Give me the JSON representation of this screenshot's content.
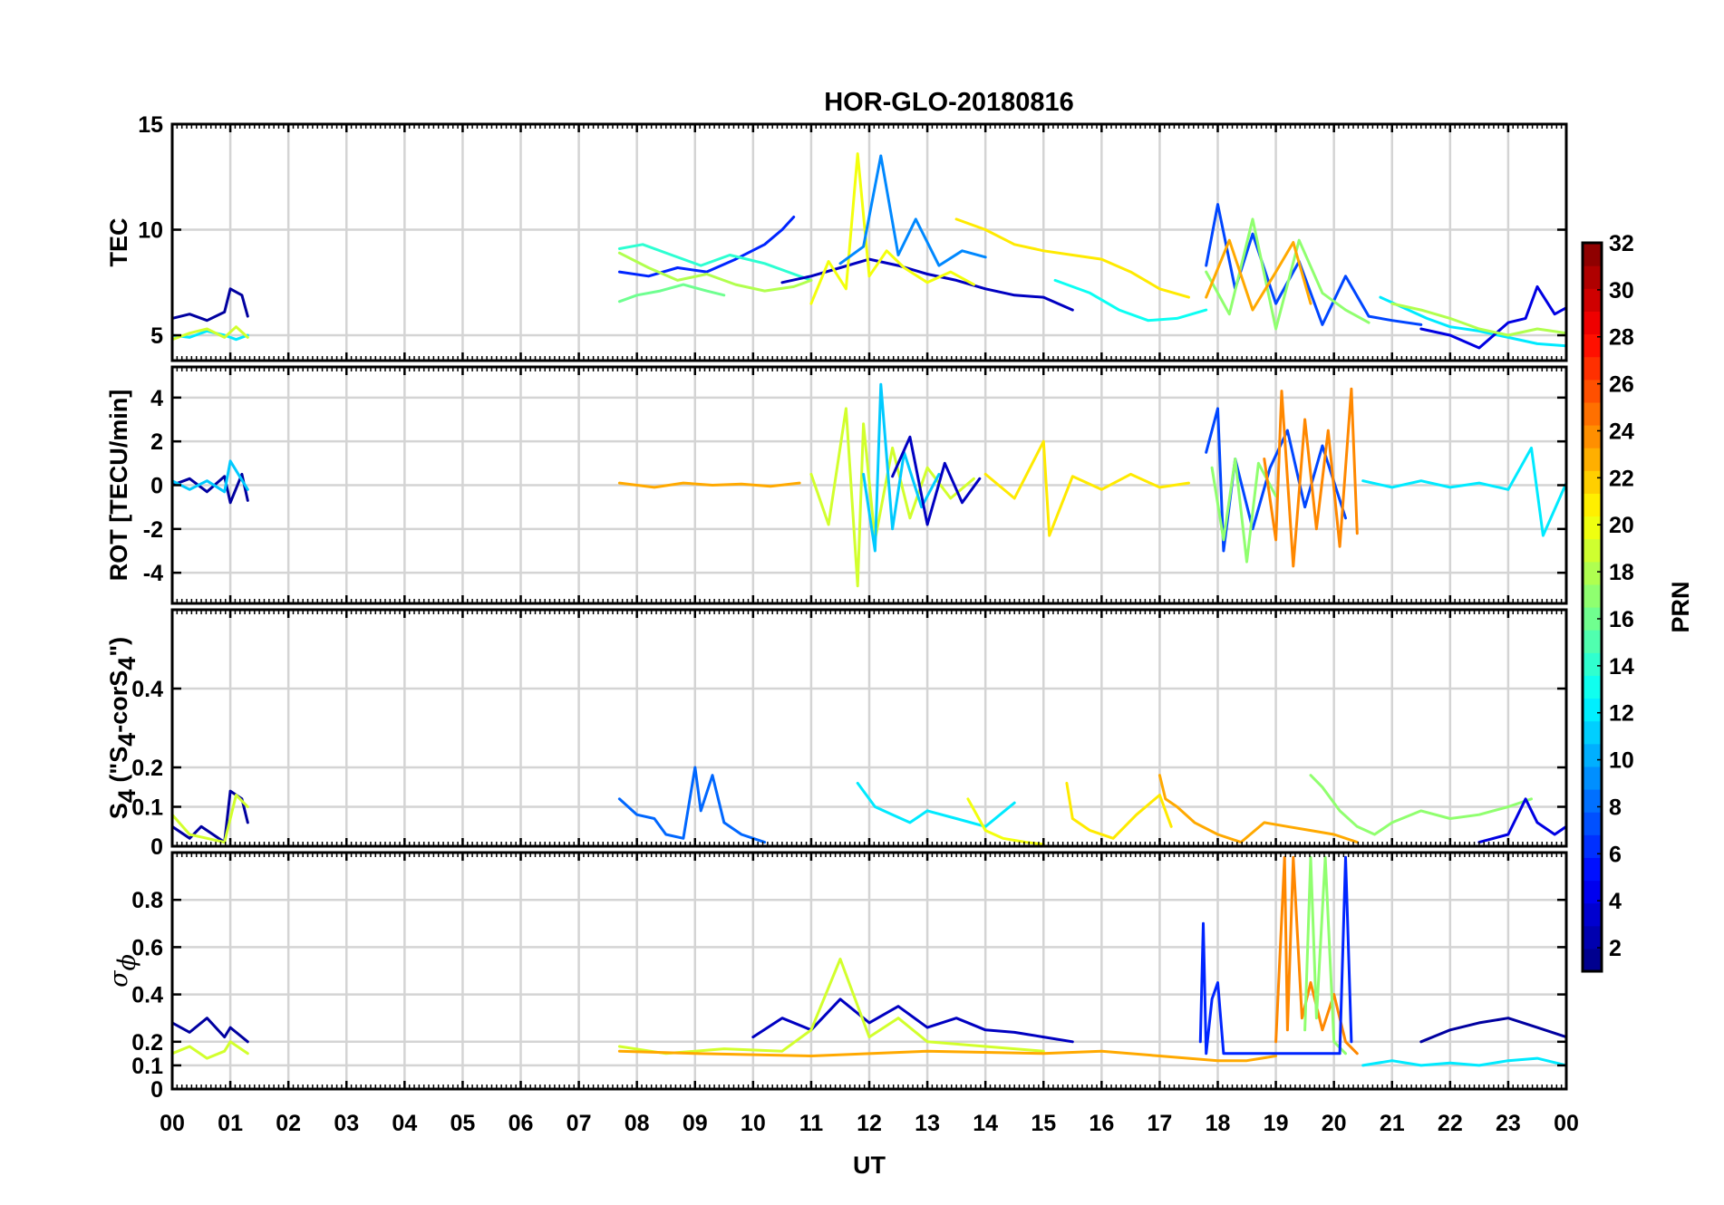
{
  "title": "HOR-GLO-20180816",
  "x_axis": {
    "label": "UT",
    "ticks": [
      "00",
      "01",
      "02",
      "03",
      "04",
      "05",
      "06",
      "07",
      "08",
      "09",
      "10",
      "11",
      "12",
      "13",
      "14",
      "15",
      "16",
      "17",
      "18",
      "19",
      "20",
      "21",
      "22",
      "23",
      "00"
    ]
  },
  "colorbar": {
    "label": "PRN",
    "ticks": [
      "2",
      "4",
      "6",
      "8",
      "10",
      "12",
      "14",
      "16",
      "18",
      "20",
      "22",
      "24",
      "26",
      "28",
      "30",
      "32"
    ],
    "range": [
      1,
      32
    ],
    "colormap": "jet"
  },
  "panels": [
    {
      "id": "tec",
      "ylabel": "TEC",
      "ylim": [
        3.8,
        15
      ],
      "ticks": [
        5,
        10,
        15
      ],
      "tick_labels": [
        "5",
        "10",
        "15"
      ]
    },
    {
      "id": "rot",
      "ylabel": "ROT [TECU/min]",
      "ylim": [
        -5.4,
        5.4
      ],
      "ticks": [
        -4,
        -2,
        0,
        2,
        4
      ],
      "tick_labels": [
        "-4",
        "-2",
        "0",
        "2",
        "4"
      ]
    },
    {
      "id": "s4",
      "ylabel_parts": [
        "S",
        "4",
        " (\"S",
        "4",
        "-corS",
        "4",
        "\")"
      ],
      "ylim": [
        0,
        0.6
      ],
      "ticks": [
        0,
        0.1,
        0.2,
        0.4
      ],
      "tick_labels": [
        "0",
        "0.1",
        "0.2",
        "0.4"
      ]
    },
    {
      "id": "sigphi",
      "ylabel_parts": [
        "σ",
        "ϕ"
      ],
      "ylim": [
        0,
        1.0
      ],
      "ticks": [
        0,
        0.1,
        0.2,
        0.4,
        0.6,
        0.8
      ],
      "tick_labels": [
        "0",
        "0.1",
        "0.2",
        "0.4",
        "0.6",
        "0.8"
      ]
    }
  ],
  "chart_data": {
    "type": "line",
    "title": "HOR-GLO-20180816",
    "xlabel": "UT",
    "xlim": [
      0,
      24
    ],
    "grid": true,
    "color_by": "PRN",
    "series": [
      {
        "panel": "tec",
        "prn": 2,
        "x": [
          0,
          0.3,
          0.6,
          0.9,
          1.0,
          1.2,
          1.3
        ],
        "y": [
          5.8,
          6.0,
          5.7,
          6.1,
          7.2,
          6.9,
          5.9
        ]
      },
      {
        "panel": "tec",
        "prn": 12,
        "x": [
          0,
          0.3,
          0.6,
          0.9,
          1.1,
          1.3
        ],
        "y": [
          5.0,
          4.9,
          5.2,
          5.0,
          4.8,
          5.0
        ]
      },
      {
        "panel": "tec",
        "prn": 19,
        "x": [
          0,
          0.3,
          0.6,
          0.9,
          1.1,
          1.3
        ],
        "y": [
          4.8,
          5.1,
          5.3,
          4.9,
          5.4,
          4.9
        ]
      },
      {
        "panel": "tec",
        "prn": 6,
        "x": [
          7.7,
          8.2,
          8.7,
          9.2,
          9.7,
          10.2,
          10.5,
          10.7
        ],
        "y": [
          8.0,
          7.8,
          8.2,
          8.0,
          8.6,
          9.3,
          10.0,
          10.6
        ]
      },
      {
        "panel": "tec",
        "prn": 16,
        "x": [
          7.7,
          8.0,
          8.4,
          8.8,
          9.2,
          9.5
        ],
        "y": [
          6.6,
          6.9,
          7.1,
          7.4,
          7.1,
          6.9
        ]
      },
      {
        "panel": "tec",
        "prn": 14,
        "x": [
          7.7,
          8.1,
          8.6,
          9.1,
          9.6,
          10.2,
          10.6,
          11.0
        ],
        "y": [
          9.1,
          9.3,
          8.8,
          8.3,
          8.8,
          8.4,
          8.0,
          7.6
        ]
      },
      {
        "panel": "tec",
        "prn": 18,
        "x": [
          7.7,
          8.2,
          8.7,
          9.2,
          9.7,
          10.2,
          10.7,
          11.0
        ],
        "y": [
          8.9,
          8.2,
          7.6,
          7.9,
          7.4,
          7.1,
          7.3,
          7.6
        ]
      },
      {
        "panel": "tec",
        "prn": 3,
        "x": [
          10.5,
          11.0,
          11.5,
          12.0,
          12.5,
          13.0,
          13.5,
          14.0,
          14.5,
          15.0,
          15.5
        ],
        "y": [
          7.5,
          7.8,
          8.2,
          8.6,
          8.3,
          7.9,
          7.6,
          7.2,
          6.9,
          6.8,
          6.2
        ]
      },
      {
        "panel": "tec",
        "prn": 20,
        "x": [
          11.0,
          11.3,
          11.6,
          11.8,
          12.0,
          12.3,
          12.6,
          13.0,
          13.4,
          13.8
        ],
        "y": [
          6.5,
          8.5,
          7.2,
          13.6,
          7.8,
          9.0,
          8.2,
          7.5,
          8.0,
          7.4
        ]
      },
      {
        "panel": "tec",
        "prn": 9,
        "x": [
          11.5,
          11.9,
          12.2,
          12.5,
          12.8,
          13.2,
          13.6,
          14.0
        ],
        "y": [
          8.4,
          9.2,
          13.5,
          8.8,
          10.5,
          8.3,
          9.0,
          8.7
        ]
      },
      {
        "panel": "tec",
        "prn": 21,
        "x": [
          13.5,
          14.0,
          14.5,
          15.0,
          15.5,
          16.0,
          16.5,
          17.0,
          17.5
        ],
        "y": [
          10.5,
          10.0,
          9.3,
          9.0,
          8.8,
          8.6,
          8.0,
          7.2,
          6.8
        ]
      },
      {
        "panel": "tec",
        "prn": 13,
        "x": [
          15.2,
          15.8,
          16.3,
          16.8,
          17.3,
          17.8
        ],
        "y": [
          7.6,
          7.0,
          6.2,
          5.7,
          5.8,
          6.2
        ]
      },
      {
        "panel": "tec",
        "prn": 7,
        "x": [
          17.8,
          18.0,
          18.3,
          18.6,
          19.0,
          19.4,
          19.8,
          20.2,
          20.6,
          21.0,
          21.5
        ],
        "y": [
          8.3,
          11.2,
          7.2,
          9.8,
          6.5,
          8.5,
          5.5,
          7.8,
          5.9,
          5.7,
          5.5
        ]
      },
      {
        "panel": "tec",
        "prn": 17,
        "x": [
          17.8,
          18.2,
          18.6,
          19.0,
          19.4,
          19.8,
          20.2,
          20.6
        ],
        "y": [
          8.0,
          6.0,
          10.5,
          5.3,
          9.5,
          7.0,
          6.2,
          5.6
        ]
      },
      {
        "panel": "tec",
        "prn": 23,
        "x": [
          17.8,
          18.2,
          18.6,
          19.0,
          19.3,
          19.6
        ],
        "y": [
          6.8,
          9.5,
          6.2,
          8.0,
          9.4,
          6.5
        ]
      },
      {
        "panel": "tec",
        "prn": 12,
        "x": [
          20.8,
          21.2,
          21.6,
          22.0,
          22.5,
          23.0,
          23.5,
          24.0
        ],
        "y": [
          6.8,
          6.3,
          5.8,
          5.4,
          5.2,
          4.9,
          4.6,
          4.5
        ]
      },
      {
        "panel": "tec",
        "prn": 4,
        "x": [
          21.5,
          22.0,
          22.5,
          23.0,
          23.3,
          23.5,
          23.8,
          24.0
        ],
        "y": [
          5.3,
          5.0,
          4.4,
          5.6,
          5.8,
          7.3,
          6.0,
          6.3
        ]
      },
      {
        "panel": "tec",
        "prn": 18,
        "x": [
          21.0,
          21.5,
          22.0,
          22.5,
          23.0,
          23.5,
          24.0
        ],
        "y": [
          6.5,
          6.2,
          5.8,
          5.3,
          5.0,
          5.3,
          5.1
        ]
      },
      {
        "panel": "rot",
        "prn": 2,
        "x": [
          0,
          0.3,
          0.6,
          0.9,
          1.0,
          1.2,
          1.3
        ],
        "y": [
          0,
          0.3,
          -0.3,
          0.4,
          -0.8,
          0.5,
          -0.7
        ]
      },
      {
        "panel": "rot",
        "prn": 11,
        "x": [
          0,
          0.3,
          0.6,
          0.9,
          1.0,
          1.3
        ],
        "y": [
          0.2,
          -0.2,
          0.2,
          -0.3,
          1.1,
          -0.2
        ]
      },
      {
        "panel": "rot",
        "prn": 23,
        "x": [
          7.7,
          8.3,
          8.8,
          9.3,
          9.8,
          10.3,
          10.8
        ],
        "y": [
          0.1,
          -0.1,
          0.1,
          0,
          0.05,
          -0.05,
          0.1
        ]
      },
      {
        "panel": "rot",
        "prn": 19,
        "x": [
          11.0,
          11.3,
          11.6,
          11.8,
          11.9,
          12.1,
          12.4,
          12.7,
          13.0,
          13.4,
          13.8
        ],
        "y": [
          0.5,
          -1.8,
          3.5,
          -4.6,
          2.8,
          -2.5,
          1.7,
          -1.5,
          0.8,
          -0.6,
          0.3
        ]
      },
      {
        "panel": "rot",
        "prn": 11,
        "x": [
          11.9,
          12.1,
          12.2,
          12.4,
          12.6,
          12.9,
          13.2
        ],
        "y": [
          0.5,
          -3.0,
          4.6,
          -2.0,
          1.5,
          -1.0,
          0.5
        ]
      },
      {
        "panel": "rot",
        "prn": 3,
        "x": [
          12.4,
          12.7,
          13.0,
          13.3,
          13.6,
          13.9
        ],
        "y": [
          0.4,
          2.2,
          -1.8,
          1.0,
          -0.8,
          0.3
        ]
      },
      {
        "panel": "rot",
        "prn": 21,
        "x": [
          14.0,
          14.5,
          15.0,
          15.1,
          15.5,
          16.0,
          16.5,
          17.0,
          17.5
        ],
        "y": [
          0.5,
          -0.6,
          2.0,
          -2.3,
          0.4,
          -0.2,
          0.5,
          -0.1,
          0.1
        ]
      },
      {
        "panel": "rot",
        "prn": 7,
        "x": [
          17.8,
          18.0,
          18.1,
          18.3,
          18.6,
          18.9,
          19.2,
          19.5,
          19.8,
          20.2
        ],
        "y": [
          1.5,
          3.5,
          -3.0,
          1.2,
          -2.0,
          0.8,
          2.5,
          -1.0,
          1.8,
          -1.5
        ]
      },
      {
        "panel": "rot",
        "prn": 17,
        "x": [
          17.9,
          18.1,
          18.3,
          18.5,
          18.7,
          19.0
        ],
        "y": [
          0.8,
          -2.5,
          1.2,
          -3.5,
          1.0,
          -0.5
        ]
      },
      {
        "panel": "rot",
        "prn": 24,
        "x": [
          18.8,
          19.0,
          19.1,
          19.3,
          19.5,
          19.7,
          19.9,
          20.1,
          20.3,
          20.4
        ],
        "y": [
          1.2,
          -2.5,
          4.3,
          -3.7,
          3.0,
          -2.0,
          2.5,
          -2.8,
          4.4,
          -2.2
        ]
      },
      {
        "panel": "rot",
        "prn": 12,
        "x": [
          20.5,
          21.0,
          21.5,
          22.0,
          22.5,
          23.0,
          23.4,
          23.6,
          24.0
        ],
        "y": [
          0.2,
          -0.1,
          0.2,
          -0.1,
          0.1,
          -0.2,
          1.7,
          -2.3,
          0.1
        ]
      },
      {
        "panel": "s4",
        "prn": 2,
        "x": [
          0,
          0.3,
          0.5,
          0.9,
          1.0,
          1.2,
          1.3
        ],
        "y": [
          0.05,
          0.02,
          0.05,
          0.01,
          0.14,
          0.12,
          0.06
        ]
      },
      {
        "panel": "s4",
        "prn": 19,
        "x": [
          0,
          0.3,
          0.6,
          0.9,
          1.1,
          1.3
        ],
        "y": [
          0.08,
          0.03,
          0.02,
          0.01,
          0.13,
          0.1
        ]
      },
      {
        "panel": "s4",
        "prn": 8,
        "x": [
          7.7,
          8.0,
          8.3,
          8.5,
          8.8,
          9.0,
          9.1,
          9.3,
          9.5,
          9.8,
          10.2
        ],
        "y": [
          0.12,
          0.08,
          0.07,
          0.03,
          0.02,
          0.2,
          0.09,
          0.18,
          0.06,
          0.03,
          0.01
        ]
      },
      {
        "panel": "s4",
        "prn": 12,
        "x": [
          11.8,
          12.1,
          12.4,
          12.7,
          13.0,
          13.5,
          14.0,
          14.5
        ],
        "y": [
          0.16,
          0.1,
          0.08,
          0.06,
          0.09,
          0.07,
          0.05,
          0.11
        ]
      },
      {
        "panel": "s4",
        "prn": 20,
        "x": [
          13.7,
          14.0,
          14.3,
          14.7,
          15.0
        ],
        "y": [
          0.12,
          0.04,
          0.02,
          0.01,
          0.005
        ]
      },
      {
        "panel": "s4",
        "prn": 21,
        "x": [
          15.4,
          15.5,
          15.8,
          16.2,
          16.6,
          17.0,
          17.2
        ],
        "y": [
          0.16,
          0.07,
          0.04,
          0.02,
          0.08,
          0.13,
          0.05
        ]
      },
      {
        "panel": "s4",
        "prn": 23,
        "x": [
          17.0,
          17.1,
          17.3,
          17.6,
          18.0,
          18.4,
          18.8,
          19.2,
          19.6,
          20.0,
          20.4
        ],
        "y": [
          0.18,
          0.12,
          0.1,
          0.06,
          0.03,
          0.01,
          0.06,
          0.05,
          0.04,
          0.03,
          0.01
        ]
      },
      {
        "panel": "s4",
        "prn": 17,
        "x": [
          19.6,
          19.8,
          20.1,
          20.4,
          20.7,
          21.0,
          21.5,
          22.0,
          22.5,
          23.0,
          23.4
        ],
        "y": [
          0.18,
          0.15,
          0.09,
          0.05,
          0.03,
          0.06,
          0.09,
          0.07,
          0.08,
          0.1,
          0.12
        ]
      },
      {
        "panel": "s4",
        "prn": 4,
        "x": [
          22.5,
          23.0,
          23.3,
          23.5,
          23.8,
          24.0
        ],
        "y": [
          0.01,
          0.03,
          0.12,
          0.06,
          0.03,
          0.05
        ]
      },
      {
        "panel": "sigphi",
        "prn": 2,
        "x": [
          0,
          0.3,
          0.6,
          0.9,
          1.0,
          1.3
        ],
        "y": [
          0.28,
          0.24,
          0.3,
          0.22,
          0.26,
          0.2
        ]
      },
      {
        "panel": "sigphi",
        "prn": 19,
        "x": [
          0,
          0.3,
          0.6,
          0.9,
          1.0,
          1.3
        ],
        "y": [
          0.15,
          0.18,
          0.13,
          0.16,
          0.2,
          0.15
        ]
      },
      {
        "panel": "sigphi",
        "prn": 3,
        "x": [
          10.0,
          10.5,
          11.0,
          11.5,
          12.0,
          12.5,
          13.0,
          13.5,
          14.0,
          14.5,
          15.0,
          15.5
        ],
        "y": [
          0.22,
          0.3,
          0.25,
          0.38,
          0.28,
          0.35,
          0.26,
          0.3,
          0.25,
          0.24,
          0.22,
          0.2
        ]
      },
      {
        "panel": "sigphi",
        "prn": 19,
        "x": [
          7.7,
          8.5,
          9.5,
          10.5,
          11.0,
          11.5,
          12.0,
          12.5,
          13.0,
          14.0,
          15.0
        ],
        "y": [
          0.18,
          0.15,
          0.17,
          0.16,
          0.25,
          0.55,
          0.22,
          0.3,
          0.2,
          0.18,
          0.16
        ]
      },
      {
        "panel": "sigphi",
        "prn": 23,
        "x": [
          7.7,
          9.0,
          11.0,
          13.0,
          15.0,
          16.0,
          17.0,
          17.5,
          18.0,
          18.5,
          19.0
        ],
        "y": [
          0.16,
          0.15,
          0.14,
          0.16,
          0.15,
          0.16,
          0.14,
          0.13,
          0.12,
          0.12,
          0.14
        ]
      },
      {
        "panel": "sigphi",
        "prn": 24,
        "x": [
          19.0,
          19.15,
          19.2,
          19.3,
          19.45,
          19.6,
          19.8,
          20.0,
          20.2,
          20.4
        ],
        "y": [
          0.2,
          0.98,
          0.25,
          0.98,
          0.3,
          0.45,
          0.25,
          0.4,
          0.2,
          0.15
        ]
      },
      {
        "panel": "sigphi",
        "prn": 17,
        "x": [
          19.5,
          19.6,
          19.7,
          19.85,
          20.0,
          20.2
        ],
        "y": [
          0.25,
          0.98,
          0.3,
          0.98,
          0.2,
          0.15
        ]
      },
      {
        "panel": "sigphi",
        "prn": 6,
        "x": [
          17.7,
          17.75,
          17.8,
          17.9,
          18.0,
          18.1,
          20.1,
          20.2,
          20.3
        ],
        "y": [
          0.2,
          0.7,
          0.15,
          0.38,
          0.45,
          0.15,
          0.15,
          0.98,
          0.2
        ]
      },
      {
        "panel": "sigphi",
        "prn": 2,
        "x": [
          21.5,
          22.0,
          22.5,
          23.0,
          23.5,
          24.0
        ],
        "y": [
          0.2,
          0.25,
          0.28,
          0.3,
          0.26,
          0.22
        ]
      },
      {
        "panel": "sigphi",
        "prn": 12,
        "x": [
          20.5,
          21.0,
          21.5,
          22.0,
          22.5,
          23.0,
          23.5,
          24.0
        ],
        "y": [
          0.1,
          0.12,
          0.1,
          0.11,
          0.1,
          0.12,
          0.13,
          0.1
        ]
      }
    ]
  }
}
